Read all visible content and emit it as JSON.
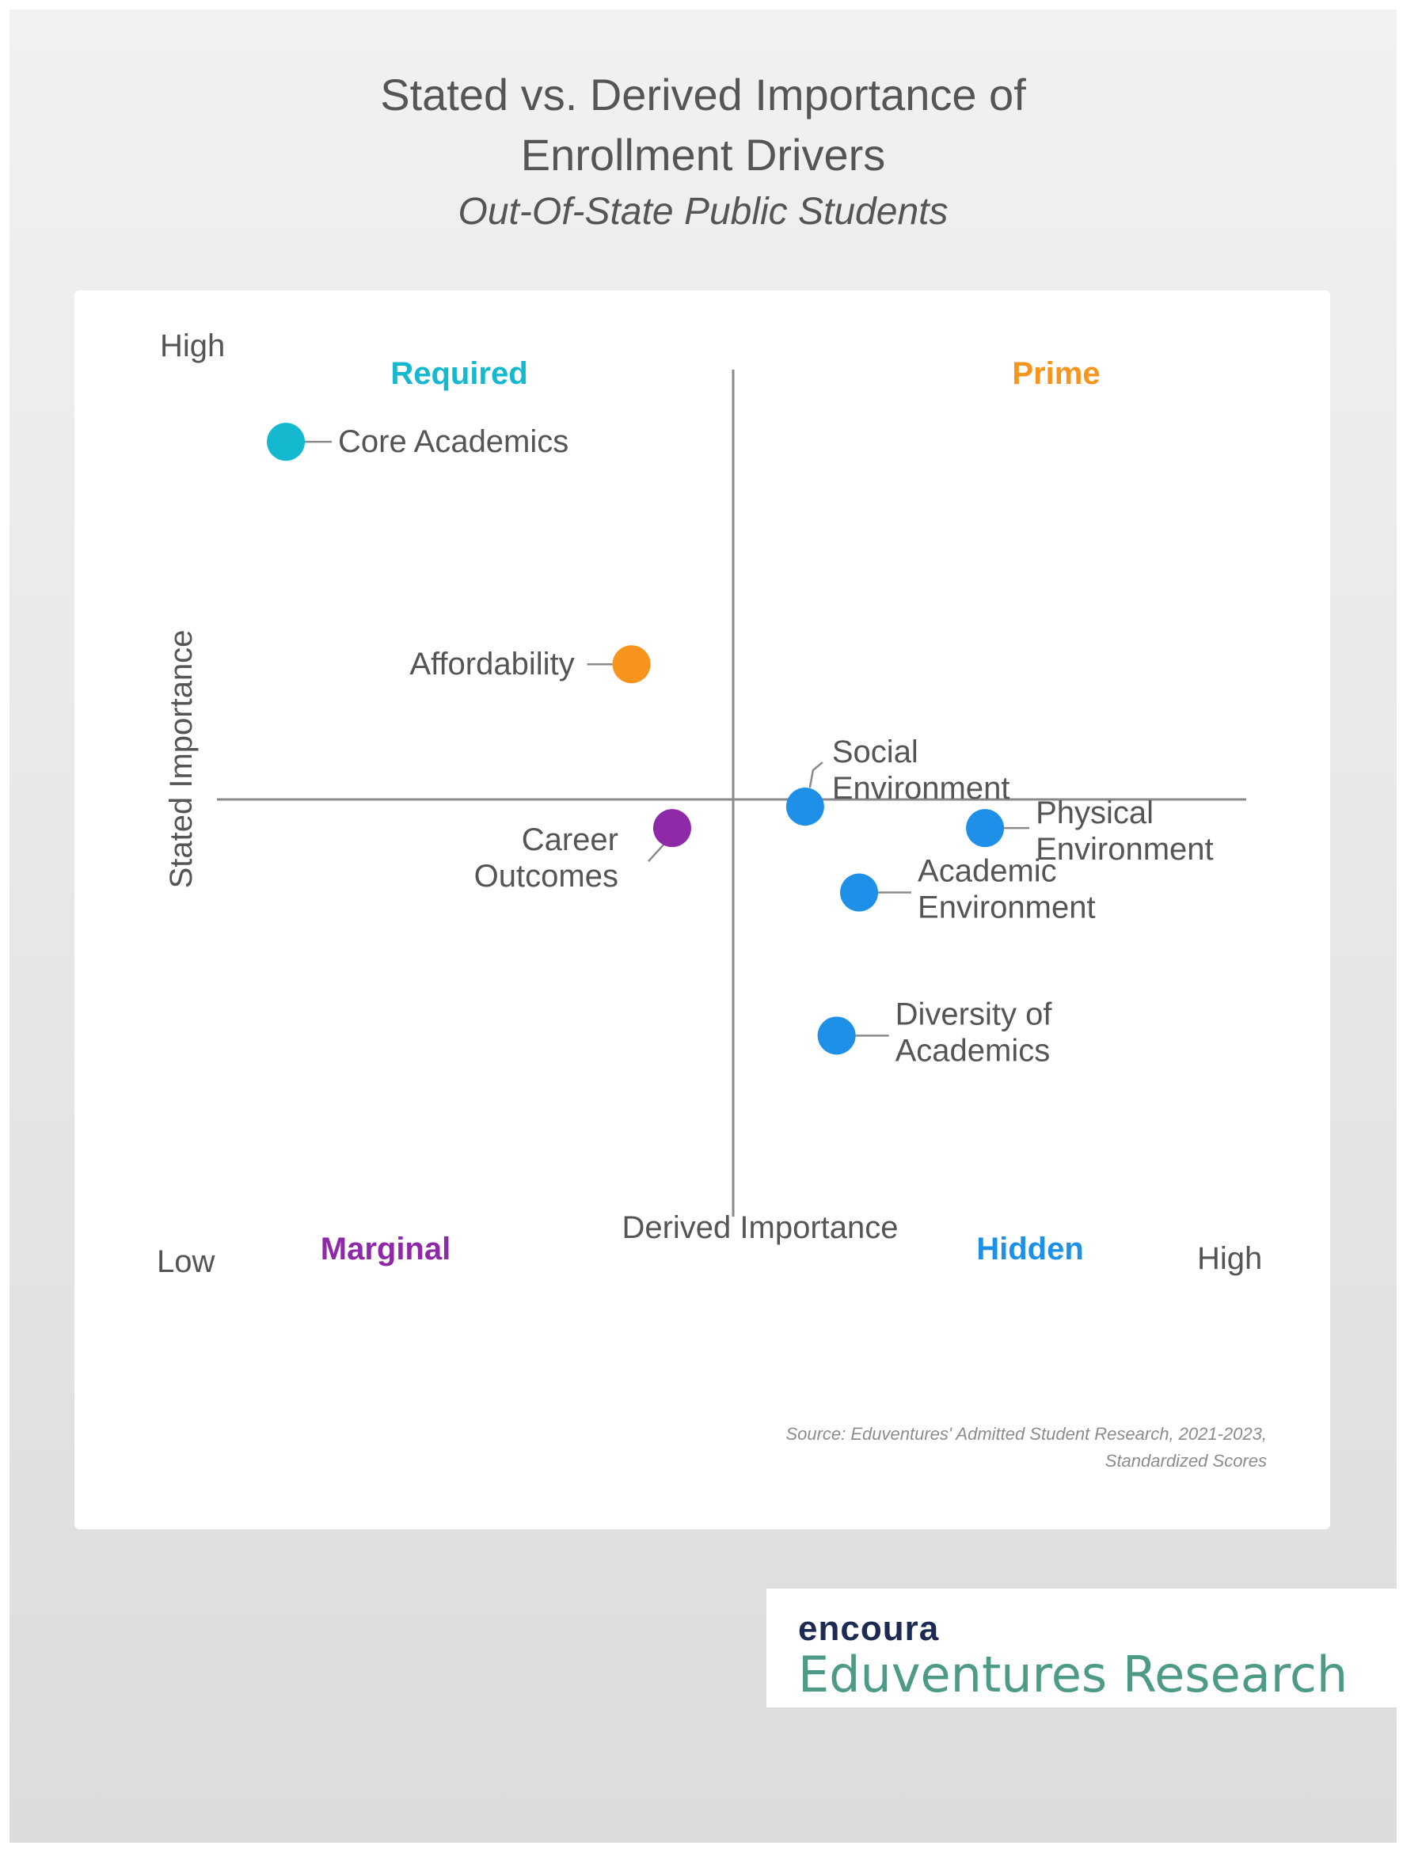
{
  "header": {
    "title_line1": "Stated vs. Derived Importance of",
    "title_line2": "Enrollment Drivers",
    "subtitle": "Out-Of-State Public Students"
  },
  "chart_data": {
    "type": "scatter",
    "title": "Stated vs. Derived Importance of Enrollment Drivers",
    "subtitle": "Out-Of-State Public Students",
    "xlabel": "Derived Importance",
    "ylabel": "Stated Importance",
    "xlim": [
      -100,
      100
    ],
    "ylim": [
      -100,
      100
    ],
    "grid": false,
    "axis_ends": {
      "y_high": "High",
      "x_low": "Low",
      "x_high": "High"
    },
    "quadrants": [
      {
        "label": "Required",
        "position": "top-left",
        "color": "#14b8cf"
      },
      {
        "label": "Prime",
        "position": "top-right",
        "color": "#f7941d"
      },
      {
        "label": "Marginal",
        "position": "bottom-left",
        "color": "#8e2aa8"
      },
      {
        "label": "Hidden",
        "position": "bottom-right",
        "color": "#1e90e8"
      }
    ],
    "points": [
      {
        "label_lines": [
          "Core Academics"
        ],
        "x": -88,
        "y": 82,
        "color": "#14b8cf"
      },
      {
        "label_lines": [
          "Affordability"
        ],
        "x": -20,
        "y": 31,
        "color": "#f7941d"
      },
      {
        "label_lines": [
          "Career",
          "Outcomes"
        ],
        "x": -12,
        "y": -8,
        "color": "#8e2aa8"
      },
      {
        "label_lines": [
          "Social",
          "Environment"
        ],
        "x": 16,
        "y": -2,
        "color": "#1e90e8"
      },
      {
        "label_lines": [
          "Physical",
          "Environment"
        ],
        "x": 56,
        "y": -8,
        "color": "#1e90e8"
      },
      {
        "label_lines": [
          "Academic",
          "Environment"
        ],
        "x": 28,
        "y": -26,
        "color": "#1e90e8"
      },
      {
        "label_lines": [
          "Diversity of",
          "Academics"
        ],
        "x": 23,
        "y": -66,
        "color": "#1e90e8"
      }
    ]
  },
  "source": {
    "line1": "Source: Eduventures' Admitted Student Research, 2021-2023,",
    "line2": "Standardized Scores"
  },
  "logo": {
    "brand": "encoura",
    "research": "Eduventures Research"
  }
}
